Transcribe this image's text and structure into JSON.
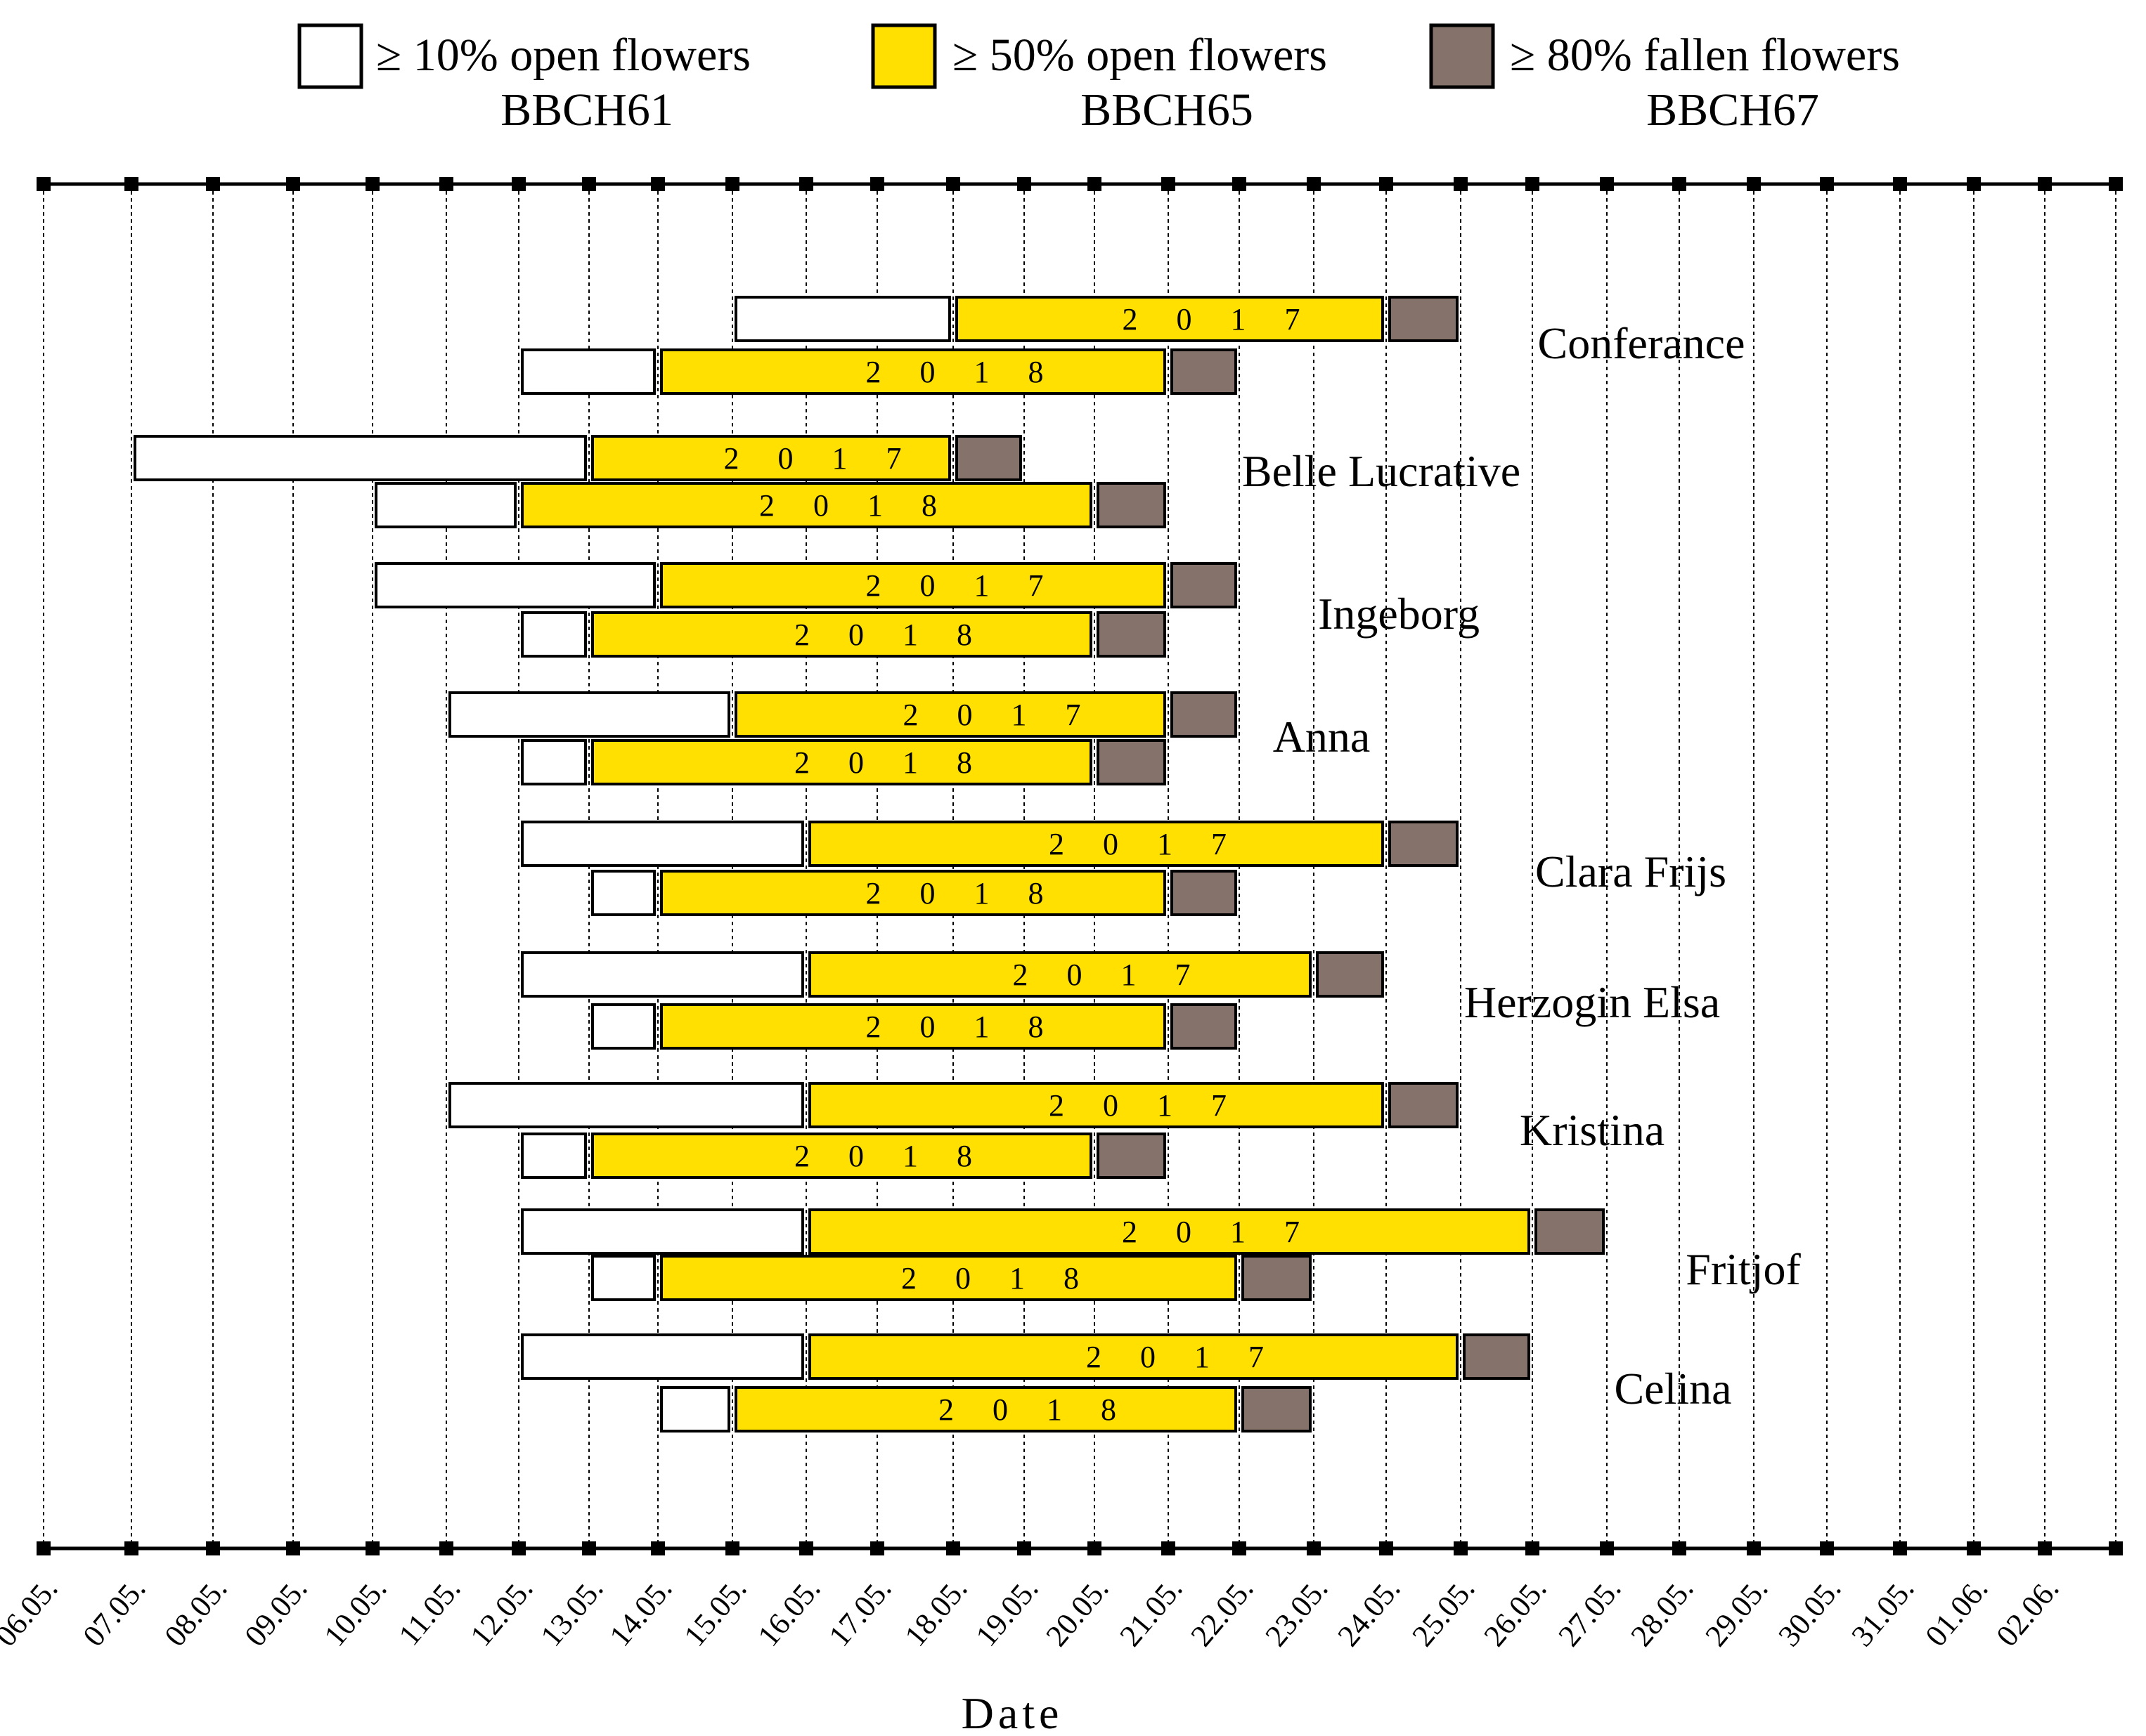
{
  "chart_data": {
    "type": "gantt",
    "xlabel": "Date",
    "dates": [
      "06.05.",
      "07.05.",
      "08.05.",
      "09.05.",
      "10.05.",
      "11.05.",
      "12.05.",
      "13.05.",
      "14.05.",
      "15.05.",
      "16.05.",
      "17.05.",
      "18.05.",
      "19.05.",
      "20.05.",
      "21.05.",
      "22.05.",
      "23.05.",
      "24.05.",
      "25.05.",
      "26.05.",
      "27.05.",
      "28.05.",
      "29.05.",
      "30.05.",
      "31.05.",
      "01.06.",
      "02.06."
    ],
    "legend": [
      {
        "key": "bbch61",
        "label": "≥ 10% open flowers",
        "stage": "BBCH61",
        "color": "#ffffff"
      },
      {
        "key": "bbch65",
        "label": "≥ 50% open flowers",
        "stage": "BBCH65",
        "color": "#ffe000"
      },
      {
        "key": "bbch67",
        "label": "≥ 80% fallen flowers",
        "stage": "BBCH67",
        "color": "#85736b"
      }
    ],
    "varieties": [
      {
        "name": "Conferance",
        "rows": [
          {
            "year": "2 0 1 7",
            "bbch61": [
              9,
              12
            ],
            "bbch65": [
              12,
              18
            ],
            "bbch67": [
              18,
              19
            ]
          },
          {
            "year": "2 0 1 8",
            "bbch61": [
              6,
              8
            ],
            "bbch65": [
              8,
              15
            ],
            "bbch67": [
              15,
              16
            ]
          }
        ]
      },
      {
        "name": "Belle Lucrative",
        "rows": [
          {
            "year": "2 0 1 7",
            "bbch61": [
              1,
              7
            ],
            "bbch65": [
              7,
              12
            ],
            "bbch67": [
              12,
              13
            ]
          },
          {
            "year": "2 0 1 8",
            "bbch61": [
              4,
              6
            ],
            "bbch65": [
              6,
              14
            ],
            "bbch67": [
              14,
              15
            ]
          }
        ]
      },
      {
        "name": "Ingeborg",
        "rows": [
          {
            "year": "2 0 1 7",
            "bbch61": [
              4,
              8
            ],
            "bbch65": [
              8,
              15
            ],
            "bbch67": [
              15,
              16
            ]
          },
          {
            "year": "2 0 1 8",
            "bbch61": [
              6,
              7
            ],
            "bbch65": [
              7,
              14
            ],
            "bbch67": [
              14,
              15
            ]
          }
        ]
      },
      {
        "name": "Anna",
        "rows": [
          {
            "year": "2 0 1 7",
            "bbch61": [
              5,
              9
            ],
            "bbch65": [
              9,
              15
            ],
            "bbch67": [
              15,
              16
            ]
          },
          {
            "year": "2 0 1 8",
            "bbch61": [
              6,
              7
            ],
            "bbch65": [
              7,
              14
            ],
            "bbch67": [
              14,
              15
            ]
          }
        ]
      },
      {
        "name": "Clara Frijs",
        "rows": [
          {
            "year": "2 0 1 7",
            "bbch61": [
              6,
              10
            ],
            "bbch65": [
              10,
              18
            ],
            "bbch67": [
              18,
              19
            ]
          },
          {
            "year": "2 0 1 8",
            "bbch61": [
              7,
              8
            ],
            "bbch65": [
              8,
              15
            ],
            "bbch67": [
              15,
              16
            ]
          }
        ]
      },
      {
        "name": "Herzogin Elsa",
        "rows": [
          {
            "year": "2 0 1 7",
            "bbch61": [
              6,
              10
            ],
            "bbch65": [
              10,
              17
            ],
            "bbch67": [
              17,
              18
            ]
          },
          {
            "year": "2 0 1 8",
            "bbch61": [
              7,
              8
            ],
            "bbch65": [
              8,
              15
            ],
            "bbch67": [
              15,
              16
            ]
          }
        ]
      },
      {
        "name": "Kristina",
        "rows": [
          {
            "year": "2 0 1 7",
            "bbch61": [
              5,
              10
            ],
            "bbch65": [
              10,
              18
            ],
            "bbch67": [
              18,
              19
            ]
          },
          {
            "year": "2 0 1 8",
            "bbch61": [
              6,
              7
            ],
            "bbch65": [
              7,
              14
            ],
            "bbch67": [
              14,
              15
            ]
          }
        ]
      },
      {
        "name": "Fritjof",
        "rows": [
          {
            "year": "2 0 1 7",
            "bbch61": [
              6,
              10
            ],
            "bbch65": [
              10,
              20
            ],
            "bbch67": [
              20,
              21
            ]
          },
          {
            "year": "2 0 1 8",
            "bbch61": [
              7,
              8
            ],
            "bbch65": [
              8,
              16
            ],
            "bbch67": [
              16,
              17
            ]
          }
        ]
      },
      {
        "name": "Celina",
        "rows": [
          {
            "year": "2 0 1 7",
            "bbch61": [
              6,
              10
            ],
            "bbch65": [
              10,
              19
            ],
            "bbch67": [
              19,
              20
            ]
          },
          {
            "year": "2 0 1 8",
            "bbch61": [
              8,
              9
            ],
            "bbch65": [
              9,
              16
            ],
            "bbch67": [
              16,
              17
            ]
          }
        ]
      }
    ]
  }
}
